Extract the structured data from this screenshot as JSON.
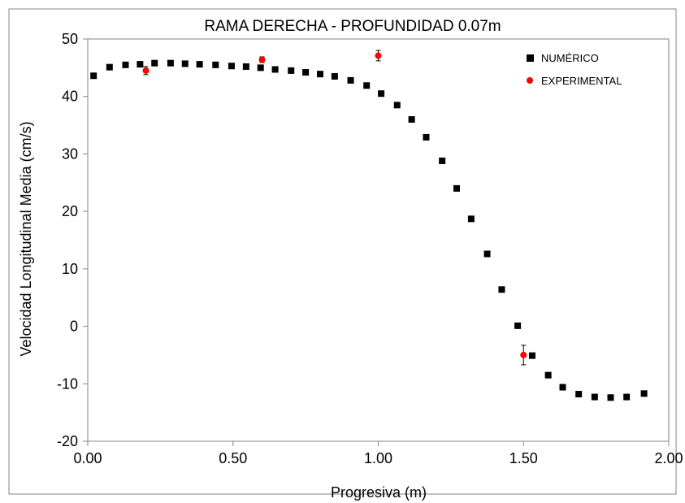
{
  "chart_data": {
    "type": "scatter",
    "title": "RAMA DERECHA - PROFUNDIDAD 0.07m",
    "xlabel": "Progresiva (m)",
    "ylabel": "Velocidad Longitudinal Media (cm/s)",
    "xlim": [
      0,
      2
    ],
    "ylim": [
      -20,
      50
    ],
    "x_ticks": [
      "0.00",
      "0.50",
      "1.00",
      "1.50",
      "2.00"
    ],
    "x_tick_values": [
      0,
      0.5,
      1,
      1.5,
      2
    ],
    "y_ticks": [
      "-20",
      "-10",
      "0",
      "10",
      "20",
      "30",
      "40",
      "50"
    ],
    "y_tick_values": [
      -20,
      -10,
      0,
      10,
      20,
      30,
      40,
      50
    ],
    "grid": false,
    "legend_position": "top-right",
    "series": [
      {
        "name": "NUMÉRICO",
        "marker": "square",
        "color": "#000000",
        "x": [
          0.02,
          0.075,
          0.13,
          0.18,
          0.23,
          0.285,
          0.335,
          0.385,
          0.44,
          0.495,
          0.545,
          0.595,
          0.645,
          0.7,
          0.75,
          0.8,
          0.85,
          0.905,
          0.96,
          1.01,
          1.065,
          1.115,
          1.165,
          1.22,
          1.27,
          1.32,
          1.375,
          1.425,
          1.48,
          1.53,
          1.585,
          1.635,
          1.69,
          1.745,
          1.8,
          1.855,
          1.915
        ],
        "y": [
          43.6,
          45.1,
          45.5,
          45.6,
          45.8,
          45.8,
          45.7,
          45.6,
          45.5,
          45.3,
          45.2,
          45.0,
          44.7,
          44.5,
          44.2,
          43.9,
          43.5,
          42.8,
          41.9,
          40.5,
          38.5,
          36.0,
          32.9,
          28.8,
          24.0,
          18.7,
          12.6,
          6.4,
          0.1,
          -5.1,
          -8.5,
          -10.6,
          -11.8,
          -12.3,
          -12.4,
          -12.3,
          -11.7
        ]
      },
      {
        "name": "EXPERIMENTAL",
        "marker": "circle",
        "color": "#ff0000",
        "x": [
          0.2,
          0.6,
          1.0,
          1.5
        ],
        "y": [
          44.5,
          46.4,
          47.1,
          -5.0
        ],
        "error": [
          0.7,
          0.5,
          0.9,
          1.7
        ]
      }
    ]
  }
}
